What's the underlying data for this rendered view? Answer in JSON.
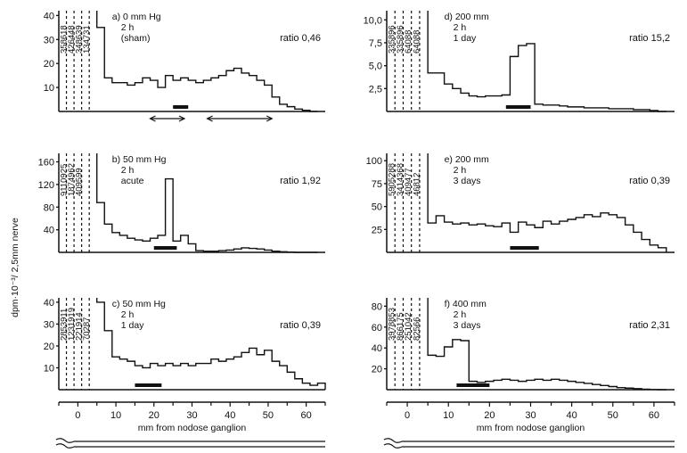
{
  "ylabel": "dpm·10⁻³/ 2,5mm nerve",
  "xlabel": "mm  from  nodose ganglion",
  "x_ticks": [
    0,
    10,
    20,
    30,
    40,
    50,
    60
  ],
  "chart_data": [
    {
      "id": "a",
      "type": "step",
      "col": 0,
      "row": 0,
      "labels": [
        "a) 0 mm  Hg",
        "2 h",
        "(sham)"
      ],
      "ratio": "ratio  0,46",
      "yticks": [
        10,
        20,
        30,
        40
      ],
      "ylim": [
        0,
        42
      ],
      "offscale": [
        "358618",
        "426448",
        "348639",
        "134731"
      ],
      "bins": [
        5,
        7,
        9,
        11,
        13,
        15,
        17,
        19,
        21,
        23,
        25,
        27,
        29,
        31,
        33,
        35,
        37,
        39,
        41,
        43,
        45,
        47,
        49,
        51,
        53,
        55,
        57,
        59,
        61
      ],
      "values": [
        35,
        14,
        12,
        12,
        11,
        12,
        14,
        13,
        10,
        15,
        13,
        14,
        13,
        12,
        13,
        14,
        15,
        17,
        18,
        16,
        15,
        13,
        11,
        6,
        3,
        2,
        1,
        0.5,
        0
      ],
      "bar": [
        25,
        29
      ],
      "arrows": [
        [
          19,
          28
        ],
        [
          34,
          51
        ]
      ]
    },
    {
      "id": "b",
      "type": "step",
      "col": 0,
      "row": 1,
      "labels": [
        "b) 50 mm  Hg",
        "2 h",
        "acute"
      ],
      "ratio": "ratio  1,92",
      "yticks": [
        40,
        80,
        120,
        160
      ],
      "ylim": [
        0,
        175
      ],
      "offscale": [
        "9110925",
        "1874962",
        "409599",
        ""
      ],
      "bins": [
        5,
        7,
        9,
        11,
        13,
        15,
        17,
        19,
        21,
        23,
        25,
        27,
        29,
        31,
        33,
        35,
        37,
        39,
        41,
        43,
        45,
        47,
        49,
        51,
        53,
        55,
        57,
        59,
        61
      ],
      "values": [
        88,
        50,
        35,
        30,
        25,
        22,
        20,
        25,
        30,
        130,
        20,
        30,
        15,
        3,
        2,
        2,
        3,
        4,
        6,
        8,
        7,
        6,
        4,
        2,
        1,
        0.5,
        0,
        0,
        0
      ],
      "bar": [
        20,
        26
      ],
      "arrows": []
    },
    {
      "id": "c",
      "type": "step",
      "col": 0,
      "row": 2,
      "labels": [
        "c) 50 mm  Hg",
        "2 h",
        "1 day"
      ],
      "ratio": "ratio  0,39",
      "yticks": [
        10,
        20,
        30,
        40
      ],
      "ylim": [
        0,
        42
      ],
      "offscale": [
        "2853911",
        "1231919",
        "221914",
        "70287"
      ],
      "bins": [
        5,
        7,
        9,
        11,
        13,
        15,
        17,
        19,
        21,
        23,
        25,
        27,
        29,
        31,
        33,
        35,
        37,
        39,
        41,
        43,
        45,
        47,
        49,
        51,
        53,
        55,
        57,
        59,
        61,
        63
      ],
      "values": [
        40,
        27,
        15,
        14,
        13,
        11,
        10,
        12,
        11,
        12,
        11,
        12,
        11,
        12,
        12,
        14,
        13,
        14,
        15,
        17,
        19,
        16,
        18,
        13,
        11,
        8,
        5,
        3,
        2,
        3
      ],
      "bar": [
        15,
        22
      ],
      "arrows": []
    },
    {
      "id": "d",
      "type": "step",
      "col": 1,
      "row": 0,
      "labels": [
        "d) 200 mm",
        "2 h",
        "1 day"
      ],
      "ratio": "ratio  15,2",
      "yticks": [
        2.5,
        5.0,
        7.5,
        10.0
      ],
      "ytick_labels": [
        "2,5",
        "5,0",
        "7,5",
        "10,0"
      ],
      "ylim": [
        0,
        11
      ],
      "offscale": [
        "335896",
        "335896",
        "64088",
        "64088"
      ],
      "bins": [
        5,
        7,
        9,
        11,
        13,
        15,
        17,
        19,
        21,
        23,
        25,
        27,
        29,
        31,
        33,
        35,
        37,
        39,
        41,
        43,
        45,
        47,
        49,
        51,
        53,
        55,
        57,
        59,
        61
      ],
      "values": [
        4.2,
        4.2,
        3.0,
        2.5,
        2.0,
        1.7,
        1.6,
        1.7,
        1.7,
        1.8,
        6.0,
        7.2,
        7.4,
        0.8,
        0.7,
        0.7,
        0.6,
        0.5,
        0.5,
        0.4,
        0.4,
        0.4,
        0.3,
        0.3,
        0.3,
        0.2,
        0.2,
        0.1,
        0
      ],
      "bar": [
        24,
        30
      ],
      "arrows": []
    },
    {
      "id": "e",
      "type": "step",
      "col": 1,
      "row": 1,
      "labels": [
        "e) 200 mm",
        "2 h",
        "3 days"
      ],
      "ratio": "ratio  0,39",
      "yticks": [
        25,
        50,
        75,
        100
      ],
      "ylim": [
        0,
        108
      ],
      "offscale": [
        "5905288",
        "3414368",
        "409477",
        "46812"
      ],
      "bins": [
        5,
        7,
        9,
        11,
        13,
        15,
        17,
        19,
        21,
        23,
        25,
        27,
        29,
        31,
        33,
        35,
        37,
        39,
        41,
        43,
        45,
        47,
        49,
        51,
        53,
        55,
        57,
        59,
        61
      ],
      "values": [
        32,
        40,
        33,
        31,
        32,
        30,
        31,
        29,
        28,
        32,
        22,
        33,
        30,
        27,
        34,
        31,
        34,
        36,
        38,
        41,
        39,
        43,
        41,
        38,
        30,
        22,
        14,
        8,
        5
      ],
      "bar": [
        25,
        32
      ],
      "arrows": []
    },
    {
      "id": "f",
      "type": "step",
      "col": 1,
      "row": 2,
      "labels": [
        "f) 400 mm",
        "2 h",
        "3 days"
      ],
      "ratio": "ratio  2,31",
      "yticks": [
        20,
        40,
        60,
        80
      ],
      "ylim": [
        0,
        88
      ],
      "offscale": [
        "3978853",
        "866175",
        "251042",
        "82566"
      ],
      "bins": [
        5,
        7,
        9,
        11,
        13,
        15,
        17,
        19,
        21,
        23,
        25,
        27,
        29,
        31,
        33,
        35,
        37,
        39,
        41,
        43,
        45,
        47,
        49,
        51,
        53,
        55,
        57,
        59,
        61
      ],
      "values": [
        33,
        32,
        41,
        48,
        47,
        8,
        7,
        8,
        9,
        10,
        9,
        8,
        9,
        10,
        9,
        10,
        9,
        8,
        7,
        6,
        5,
        4,
        3,
        2,
        1.5,
        1,
        0.5,
        0.2,
        0
      ],
      "bar": [
        12,
        20
      ],
      "arrows": []
    }
  ]
}
